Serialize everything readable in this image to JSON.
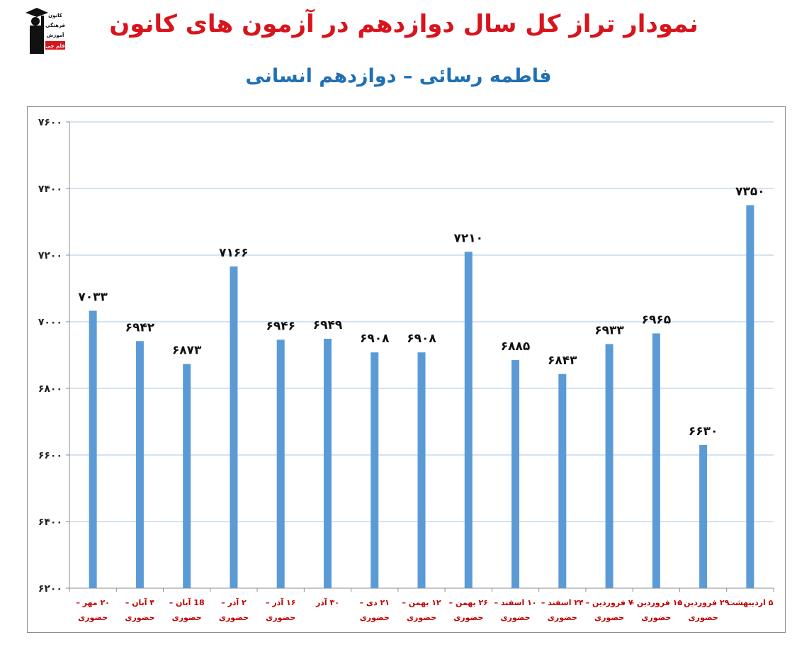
{
  "header": {
    "title": "نمودار تراز کل سال دوازدهم در آزمون های کانون",
    "subtitle": "فاطمه رسائی – دوازدهم انسانی",
    "logo_text": [
      "کانون",
      "فرهنگی",
      "آموزش",
      "قلم چی"
    ]
  },
  "chart_data": {
    "type": "bar",
    "title": "نمودار تراز کل سال دوازدهم در آزمون های کانون",
    "subtitle": "فاطمه رسائی – دوازدهم انسانی",
    "categories": [
      [
        "۲۰ مهر –",
        "حضوری"
      ],
      [
        "۴ آبان –",
        "حضوری"
      ],
      [
        "18 آبان –",
        "حضوری"
      ],
      [
        "۲ آذر –",
        "حضوری"
      ],
      [
        "۱۶ آذر –",
        "حضوری"
      ],
      [
        "۳۰ آذر",
        ""
      ],
      [
        "۲۱ دی –",
        "حضوری"
      ],
      [
        "۱۲ بهمن –",
        "حضوری"
      ],
      [
        "۲۶ بهمن –",
        "حضوری"
      ],
      [
        "۱۰ اسفند –",
        "حضوری"
      ],
      [
        "۲۴ اسفند –",
        "حضوری"
      ],
      [
        "۷ فروردین –",
        "حضوری"
      ],
      [
        "۱۵ فروردین –",
        "حضوری"
      ],
      [
        "۲۹ فروردین –",
        "حضوری"
      ],
      [
        "۵ اردیبهشت",
        ""
      ]
    ],
    "values": [
      7033,
      6942,
      6873,
      7166,
      6946,
      6949,
      6908,
      6908,
      7210,
      6885,
      6843,
      6933,
      6965,
      6630,
      7350
    ],
    "value_labels": [
      "۷۰۳۳",
      "۶۹۴۲",
      "۶۸۷۳",
      "۷۱۶۶",
      "۶۹۴۶",
      "۶۹۴۹",
      "۶۹۰۸",
      "۶۹۰۸",
      "۷۲۱۰",
      "۶۸۸۵",
      "۶۸۴۳",
      "۶۹۳۳",
      "۶۹۶۵",
      "۶۶۳۰",
      "۷۳۵۰"
    ],
    "ylim": [
      6200,
      7600
    ],
    "yticks": [
      6200,
      6400,
      6600,
      6800,
      7000,
      7200,
      7400,
      7600
    ],
    "ytick_labels": [
      "۶۲۰۰",
      "۶۴۰۰",
      "۶۶۰۰",
      "۶۸۰۰",
      "۷۰۰۰",
      "۷۲۰۰",
      "۷۴۰۰",
      "۷۶۰۰"
    ],
    "xlabel": "",
    "ylabel": "",
    "grid": true,
    "legend": "none",
    "colors": {
      "bar": "#5b9bd5",
      "grid": "#a9c4e4",
      "axis": "#8c8c8c",
      "category_text": "#c00000"
    }
  }
}
